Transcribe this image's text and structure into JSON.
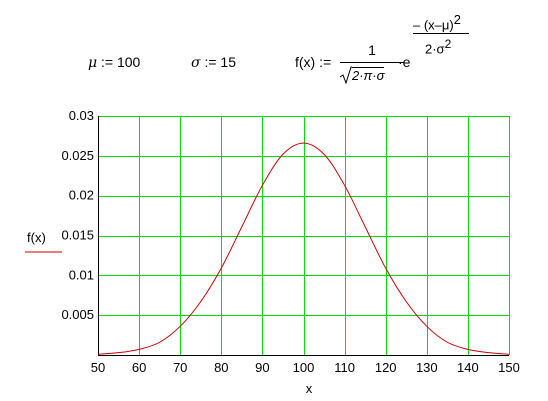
{
  "definitions": {
    "mu": {
      "symbol": "μ",
      "assign": ":=",
      "value": "100"
    },
    "sigma": {
      "symbol": "σ",
      "assign": ":=",
      "value": "15"
    },
    "function": {
      "lhs": "f(x)",
      "assign": ":=",
      "numerator": "1",
      "sqrt_body": "2·π·σ",
      "mult": "·e",
      "exp_numerator": "– (x–μ)",
      "exp_num_power": "2",
      "exp_denominator": "2·σ",
      "exp_den_power": "2"
    }
  },
  "chart_data": {
    "type": "line",
    "xlabel": "x",
    "ylabel": "f(x)",
    "xlim": [
      50,
      150
    ],
    "ylim": [
      0,
      0.03
    ],
    "x_ticks": [
      "50",
      "60",
      "70",
      "80",
      "90",
      "100",
      "110",
      "120",
      "130",
      "140",
      "150"
    ],
    "y_ticks": [
      "0.005",
      "0.01",
      "0.015",
      "0.02",
      "0.025",
      "0.03"
    ],
    "grid": true,
    "colors": {
      "grid": "#00dd00",
      "curve": "#cc0000",
      "axes": "#000000"
    },
    "series": [
      {
        "x": [
          50,
          55,
          60,
          65,
          70,
          75,
          80,
          85,
          90,
          95,
          100,
          105,
          110,
          115,
          120,
          125,
          130,
          135,
          140,
          145,
          150
        ],
        "y": [
          0.0001,
          0.0003,
          0.0007,
          0.0016,
          0.0036,
          0.0067,
          0.0109,
          0.0161,
          0.0213,
          0.0252,
          0.0266,
          0.0252,
          0.0213,
          0.0161,
          0.0109,
          0.0067,
          0.0036,
          0.0016,
          0.0007,
          0.0003,
          0.0001
        ]
      }
    ]
  }
}
